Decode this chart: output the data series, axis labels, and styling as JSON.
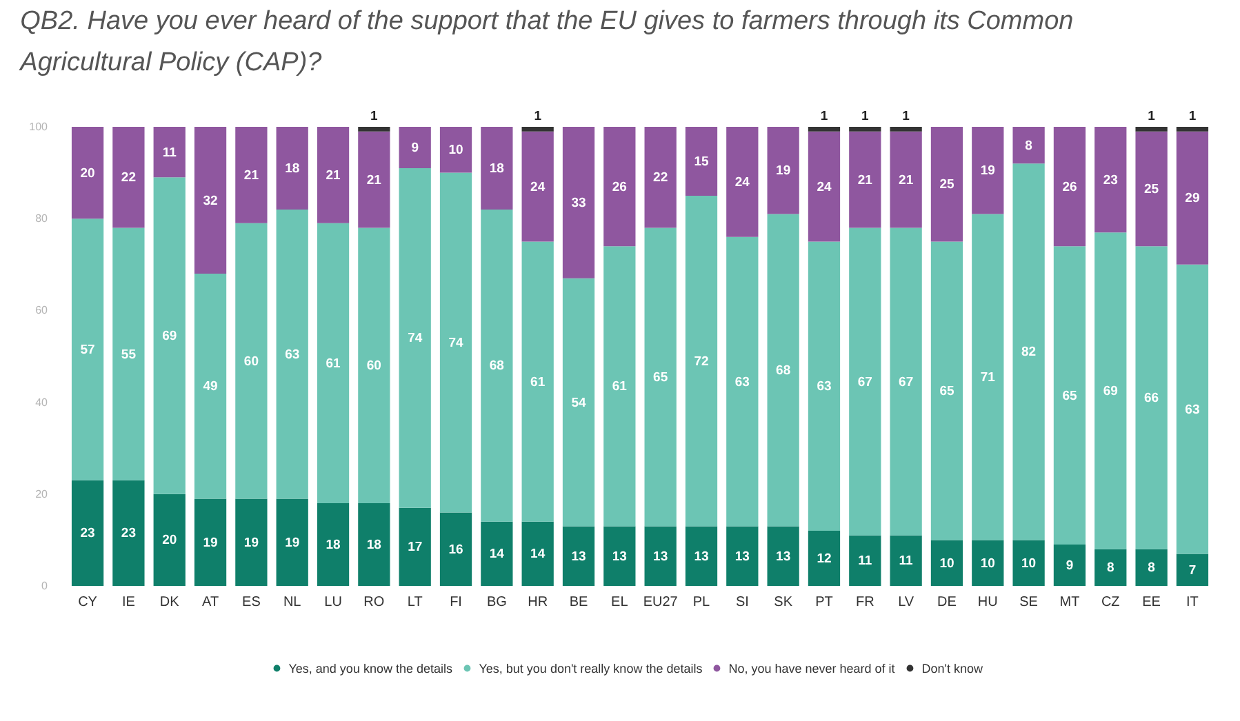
{
  "chart_data": {
    "type": "bar",
    "title": "QB2. Have you ever heard of the support that the EU gives to farmers through its Common Agricultural Policy (CAP)?",
    "categories": [
      "CY",
      "IE",
      "DK",
      "AT",
      "ES",
      "NL",
      "LU",
      "RO",
      "LT",
      "FI",
      "BG",
      "HR",
      "BE",
      "EL",
      "EU27",
      "PL",
      "SI",
      "SK",
      "PT",
      "FR",
      "LV",
      "DE",
      "HU",
      "SE",
      "MT",
      "CZ",
      "EE",
      "IT"
    ],
    "stacked": true,
    "series": [
      {
        "name": "Yes, and you know the details",
        "color": "#0f7f6a",
        "values": [
          23,
          23,
          20,
          19,
          19,
          19,
          18,
          18,
          17,
          16,
          14,
          14,
          13,
          13,
          13,
          13,
          13,
          13,
          12,
          11,
          11,
          10,
          10,
          10,
          9,
          8,
          8,
          7
        ]
      },
      {
        "name": "Yes, but you don't really know the details",
        "color": "#6cc5b4",
        "values": [
          57,
          55,
          69,
          49,
          60,
          63,
          61,
          60,
          74,
          74,
          68,
          61,
          54,
          61,
          65,
          72,
          63,
          68,
          63,
          67,
          67,
          65,
          71,
          82,
          65,
          69,
          66,
          63
        ]
      },
      {
        "name": "No, you have never heard of it",
        "color": "#8f579f",
        "values": [
          20,
          22,
          11,
          32,
          21,
          18,
          21,
          21,
          9,
          10,
          18,
          24,
          33,
          26,
          22,
          15,
          24,
          19,
          24,
          21,
          21,
          25,
          19,
          8,
          26,
          23,
          25,
          29
        ]
      },
      {
        "name": "Don't know",
        "color": "#333333",
        "values": [
          null,
          null,
          null,
          null,
          null,
          null,
          null,
          1,
          null,
          null,
          null,
          1,
          null,
          null,
          null,
          null,
          null,
          null,
          1,
          1,
          1,
          null,
          null,
          null,
          null,
          null,
          1,
          1
        ]
      }
    ],
    "ylim": [
      0,
      100
    ],
    "yticks": [
      0,
      20,
      40,
      60,
      80,
      100
    ],
    "data_labels": true,
    "legend": "bottom"
  }
}
